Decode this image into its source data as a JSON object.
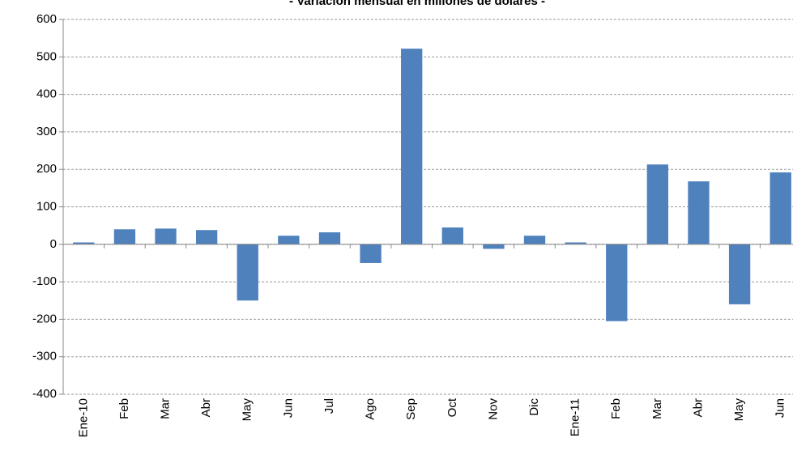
{
  "chart_data": {
    "type": "bar",
    "title": "- Variación mensual en millones de dólares -",
    "categories": [
      "Ene-10",
      "Feb",
      "Mar",
      "Abr",
      "May",
      "Jun",
      "Jul",
      "Ago",
      "Sep",
      "Oct",
      "Nov",
      "Dic",
      "Ene-11",
      "Feb",
      "Mar",
      "Abr",
      "May",
      "Jun"
    ],
    "values": [
      5,
      40,
      42,
      38,
      -150,
      23,
      32,
      -50,
      522,
      45,
      -12,
      23,
      5,
      -205,
      213,
      168,
      -160,
      192
    ],
    "color": "#4f81bd",
    "ylim": [
      -400,
      600
    ],
    "yticks": [
      -400,
      -300,
      -200,
      -100,
      0,
      100,
      200,
      300,
      400,
      500,
      600
    ],
    "grid": true
  }
}
